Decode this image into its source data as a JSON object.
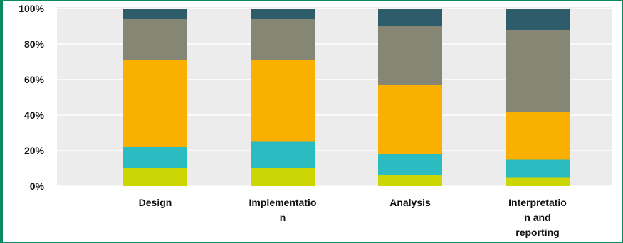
{
  "chart_data": {
    "type": "bar",
    "stacked": true,
    "percent": true,
    "categories": [
      [
        "Design"
      ],
      [
        "Implementatio",
        "n"
      ],
      [
        "Analysis"
      ],
      [
        "Interpretatio",
        "n and",
        "reporting"
      ]
    ],
    "series": [
      {
        "color": "#ccd604",
        "values": [
          10,
          10,
          6,
          5
        ]
      },
      {
        "color": "#2bbcc1",
        "values": [
          12,
          15,
          12,
          10
        ]
      },
      {
        "color": "#f9b000",
        "values": [
          49,
          46,
          39,
          27
        ]
      },
      {
        "color": "#868675",
        "values": [
          23,
          23,
          33,
          46
        ]
      },
      {
        "color": "#2f5c6a",
        "values": [
          6,
          6,
          10,
          12
        ]
      }
    ],
    "y_ticks": [
      "0%",
      "20%",
      "40%",
      "60%",
      "80%",
      "100%"
    ],
    "ylim": [
      0,
      100
    ],
    "grid": true,
    "plot_background": "#ececec",
    "legend": "none"
  }
}
